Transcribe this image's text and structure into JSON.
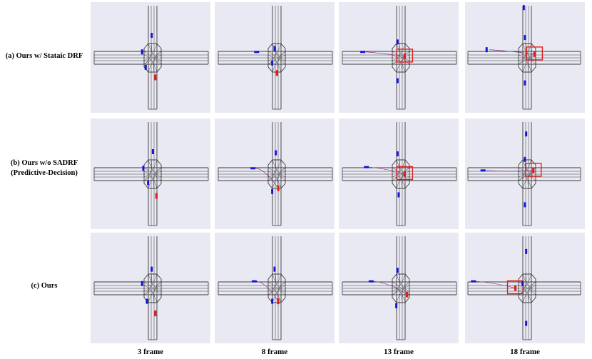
{
  "rows": [
    {
      "label_lines": [
        "(a) Ours w/ Stataic DRF"
      ]
    },
    {
      "label_lines": [
        "(b) Ours w/o SADRF",
        "(Predictive-Decision)"
      ]
    },
    {
      "label_lines": [
        "(c) Ours"
      ]
    }
  ],
  "columns": [
    "3 frame",
    "8 frame",
    "13 frame",
    "18 frame"
  ],
  "colors": {
    "panel_bg": "#e9e9f3",
    "road_line": "#3a3a3a",
    "ego_vehicle": "#e21b1b",
    "other_vehicle": "#1414d6",
    "highlight_box": "#e02020",
    "trajectory": "#8a3a8a"
  },
  "panels": [
    [
      {
        "highlight": false,
        "ego": [
          0.54,
          0.68
        ],
        "others": [
          [
            0.51,
            0.3
          ],
          [
            0.43,
            0.45
          ],
          [
            0.46,
            0.59
          ]
        ],
        "trail": false
      },
      {
        "highlight": false,
        "ego": [
          0.52,
          0.64
        ],
        "others": [
          [
            0.35,
            0.45
          ],
          [
            0.5,
            0.42
          ],
          [
            0.48,
            0.55
          ]
        ],
        "trail": false
      },
      {
        "highlight": true,
        "ego": [
          0.55,
          0.49
        ],
        "others": [
          [
            0.2,
            0.45
          ],
          [
            0.49,
            0.36
          ],
          [
            0.49,
            0.71
          ]
        ],
        "trail": true
      },
      {
        "highlight": true,
        "ego": [
          0.58,
          0.47
        ],
        "others": [
          [
            0.18,
            0.43
          ],
          [
            0.5,
            0.32
          ],
          [
            0.5,
            0.73
          ],
          [
            0.49,
            0.05
          ]
        ],
        "trail": true
      }
    ],
    [
      {
        "highlight": false,
        "ego": [
          0.55,
          0.7
        ],
        "others": [
          [
            0.52,
            0.3
          ],
          [
            0.44,
            0.45
          ],
          [
            0.48,
            0.58
          ]
        ],
        "trail": false
      },
      {
        "highlight": false,
        "ego": [
          0.53,
          0.63
        ],
        "others": [
          [
            0.32,
            0.45
          ],
          [
            0.51,
            0.31
          ],
          [
            0.48,
            0.66
          ]
        ],
        "trail": true
      },
      {
        "highlight": true,
        "ego": [
          0.55,
          0.5
        ],
        "others": [
          [
            0.23,
            0.44
          ],
          [
            0.49,
            0.32
          ],
          [
            0.5,
            0.69
          ]
        ],
        "trail": true
      },
      {
        "highlight": true,
        "ego": [
          0.57,
          0.47
        ],
        "others": [
          [
            0.15,
            0.47
          ],
          [
            0.5,
            0.37
          ],
          [
            0.5,
            0.78
          ],
          [
            0.51,
            0.14
          ]
        ],
        "trail": true
      }
    ],
    [
      {
        "highlight": false,
        "ego": [
          0.54,
          0.73
        ],
        "others": [
          [
            0.51,
            0.33
          ],
          [
            0.43,
            0.46
          ],
          [
            0.47,
            0.62
          ]
        ],
        "trail": false
      },
      {
        "highlight": false,
        "ego": [
          0.53,
          0.62
        ],
        "others": [
          [
            0.33,
            0.44
          ],
          [
            0.5,
            0.33
          ],
          [
            0.48,
            0.62
          ]
        ],
        "trail": true
      },
      {
        "highlight": false,
        "ego": [
          0.57,
          0.56
        ],
        "others": [
          [
            0.27,
            0.44
          ],
          [
            0.49,
            0.34
          ],
          [
            0.48,
            0.66
          ]
        ],
        "trail": true
      },
      {
        "highlight": true,
        "ego": [
          0.42,
          0.5
        ],
        "others": [
          [
            0.07,
            0.44
          ],
          [
            0.48,
            0.46
          ],
          [
            0.51,
            0.17
          ],
          [
            0.51,
            0.82
          ]
        ],
        "trail": true
      }
    ]
  ]
}
